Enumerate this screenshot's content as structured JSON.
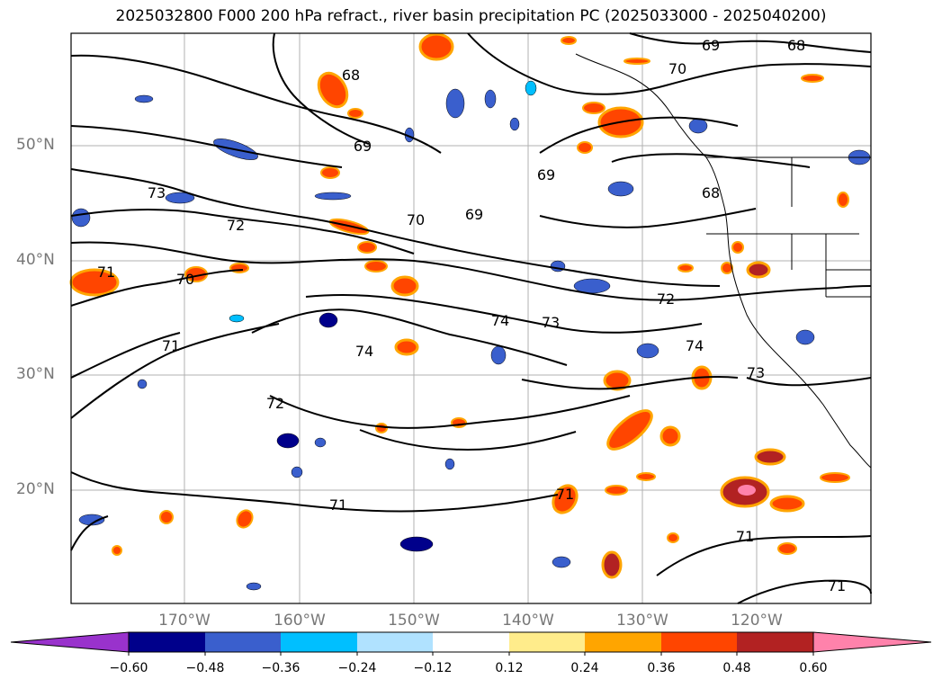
{
  "title": "2025032800 F000 200 hPa refract., river basin precipitation PC (2025033000 - 2025040200)",
  "latitude_labels": [
    "50°N",
    "40°N",
    "30°N",
    "20°N"
  ],
  "longitude_labels": [
    "170°W",
    "160°W",
    "150°W",
    "140°W",
    "130°W",
    "120°W"
  ],
  "contour_labels": [
    "68",
    "69",
    "70",
    "71",
    "72",
    "73",
    "74"
  ],
  "colorbar": {
    "ticks": [
      "−0.60",
      "−0.48",
      "−0.36",
      "−0.24",
      "−0.12",
      "0.12",
      "0.24",
      "0.36",
      "0.48",
      "0.60"
    ],
    "colors": [
      "#9932CC",
      "#00008B",
      "#3A5FCD",
      "#00BFFF",
      "#B0E2FF",
      "#FFFFFF",
      "#FFEC8B",
      "#FFA500",
      "#FF4500",
      "#B22222",
      "#FF82AB"
    ]
  },
  "map_style": {
    "grid_color": "#b0b0b0",
    "contour_color": "#000000",
    "coast_color": "#000000"
  }
}
